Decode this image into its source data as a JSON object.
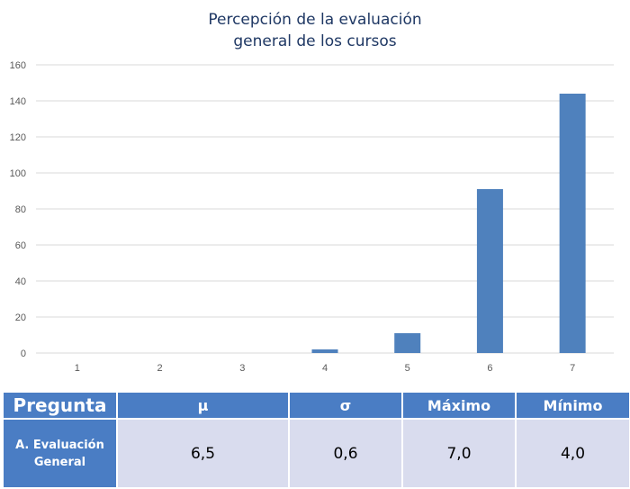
{
  "chart_data": {
    "type": "bar",
    "title_lines": [
      "Percepción de la evaluación",
      "general de los cursos"
    ],
    "categories": [
      "1",
      "2",
      "3",
      "4",
      "5",
      "6",
      "7"
    ],
    "values": [
      0,
      0,
      0,
      2,
      11,
      91,
      144
    ],
    "ylim": [
      0,
      160
    ],
    "yticks": [
      0,
      20,
      40,
      60,
      80,
      100,
      120,
      140,
      160
    ],
    "grid": true,
    "bar_color": "#4f81bd"
  },
  "table": {
    "headers": [
      "Pregunta",
      "µ",
      "σ",
      "Máximo",
      "Mínimo"
    ],
    "row": {
      "label_line1": "A. Evaluación",
      "label_line2": "General",
      "values": [
        "6,5",
        "0,6",
        "7,0",
        "4,0"
      ]
    }
  }
}
